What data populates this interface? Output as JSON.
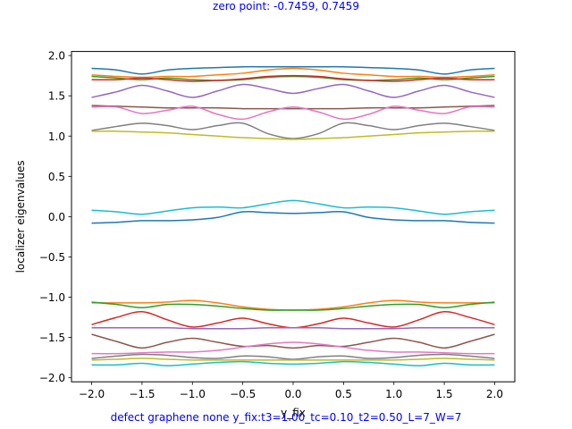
{
  "header": {
    "zero_point_text": "zero point: -0.7459, 0.7459"
  },
  "footer": {
    "caption": "defect graphene none y_fix:t3=1.00_tc=0.10_t2=0.50_L=7_W=7"
  },
  "chart_data": {
    "type": "line",
    "title": "",
    "xlabel": "y_fix",
    "ylabel": "localizer eigenvalues",
    "xlim": [
      -2.2,
      2.2
    ],
    "ylim": [
      -2.05,
      2.05
    ],
    "xticks": [
      -2.0,
      -1.5,
      -1.0,
      -0.5,
      0.0,
      0.5,
      1.0,
      1.5,
      2.0
    ],
    "xtick_labels": [
      "−2.0",
      "−1.5",
      "−1.0",
      "−0.5",
      "0.0",
      "0.5",
      "1.0",
      "1.5",
      "2.0"
    ],
    "yticks": [
      -2.0,
      -1.5,
      -1.0,
      -0.5,
      0.0,
      0.5,
      1.0,
      1.5,
      2.0
    ],
    "ytick_labels": [
      "−2.0",
      "−1.5",
      "−1.0",
      "−0.5",
      "0.0",
      "0.5",
      "1.0",
      "1.5",
      "2.0"
    ],
    "grid": false,
    "legend": "none",
    "x": [
      -2.0,
      -1.75,
      -1.5,
      -1.25,
      -1.0,
      -0.75,
      -0.5,
      -0.25,
      0.0,
      0.25,
      0.5,
      0.75,
      1.0,
      1.25,
      1.5,
      1.75,
      2.0
    ],
    "series": [
      {
        "color": "#1f77b4",
        "values": [
          1.84,
          1.82,
          1.77,
          1.82,
          1.84,
          1.85,
          1.86,
          1.86,
          1.86,
          1.86,
          1.86,
          1.85,
          1.84,
          1.82,
          1.77,
          1.82,
          1.84
        ]
      },
      {
        "color": "#ff7f0e",
        "values": [
          1.76,
          1.74,
          1.73,
          1.74,
          1.74,
          1.76,
          1.78,
          1.82,
          1.84,
          1.82,
          1.78,
          1.76,
          1.74,
          1.74,
          1.73,
          1.74,
          1.76
        ]
      },
      {
        "color": "#2ca02c",
        "values": [
          1.74,
          1.72,
          1.7,
          1.72,
          1.7,
          1.69,
          1.7,
          1.73,
          1.74,
          1.73,
          1.7,
          1.69,
          1.7,
          1.72,
          1.7,
          1.72,
          1.74
        ]
      },
      {
        "color": "#d62728",
        "values": [
          1.7,
          1.7,
          1.72,
          1.7,
          1.68,
          1.69,
          1.71,
          1.74,
          1.75,
          1.74,
          1.71,
          1.69,
          1.68,
          1.7,
          1.72,
          1.7,
          1.7
        ]
      },
      {
        "color": "#9467bd",
        "values": [
          1.48,
          1.55,
          1.63,
          1.56,
          1.48,
          1.56,
          1.64,
          1.59,
          1.53,
          1.59,
          1.64,
          1.56,
          1.48,
          1.56,
          1.63,
          1.55,
          1.48
        ]
      },
      {
        "color": "#8c564b",
        "values": [
          1.38,
          1.37,
          1.36,
          1.35,
          1.35,
          1.35,
          1.34,
          1.34,
          1.34,
          1.34,
          1.34,
          1.35,
          1.35,
          1.35,
          1.36,
          1.37,
          1.38
        ]
      },
      {
        "color": "#e377c2",
        "values": [
          1.36,
          1.36,
          1.28,
          1.32,
          1.37,
          1.27,
          1.21,
          1.3,
          1.36,
          1.3,
          1.21,
          1.27,
          1.37,
          1.32,
          1.28,
          1.36,
          1.36
        ]
      },
      {
        "color": "#7f7f7f",
        "values": [
          1.07,
          1.12,
          1.16,
          1.13,
          1.08,
          1.13,
          1.16,
          1.03,
          0.97,
          1.03,
          1.16,
          1.13,
          1.08,
          1.13,
          1.16,
          1.12,
          1.07
        ]
      },
      {
        "color": "#bcbd22",
        "values": [
          1.06,
          1.06,
          1.05,
          1.04,
          1.02,
          1.0,
          0.98,
          0.97,
          0.96,
          0.97,
          0.98,
          1.0,
          1.02,
          1.04,
          1.05,
          1.06,
          1.06
        ]
      },
      {
        "color": "#17becf",
        "values": [
          0.08,
          0.06,
          0.03,
          0.07,
          0.11,
          0.12,
          0.11,
          0.16,
          0.2,
          0.16,
          0.11,
          0.12,
          0.11,
          0.07,
          0.03,
          0.06,
          0.08
        ]
      },
      {
        "color": "#1f77b4",
        "values": [
          -0.08,
          -0.07,
          -0.05,
          -0.05,
          -0.04,
          -0.01,
          0.06,
          0.05,
          0.04,
          0.05,
          0.06,
          -0.01,
          -0.04,
          -0.05,
          -0.05,
          -0.07,
          -0.08
        ]
      },
      {
        "color": "#ff7f0e",
        "values": [
          -1.07,
          -1.07,
          -1.07,
          -1.06,
          -1.04,
          -1.07,
          -1.12,
          -1.15,
          -1.16,
          -1.15,
          -1.12,
          -1.07,
          -1.04,
          -1.06,
          -1.07,
          -1.07,
          -1.07
        ]
      },
      {
        "color": "#2ca02c",
        "values": [
          -1.06,
          -1.09,
          -1.13,
          -1.09,
          -1.09,
          -1.11,
          -1.14,
          -1.16,
          -1.16,
          -1.16,
          -1.14,
          -1.11,
          -1.09,
          -1.09,
          -1.13,
          -1.09,
          -1.06
        ]
      },
      {
        "color": "#d62728",
        "values": [
          -1.34,
          -1.25,
          -1.18,
          -1.28,
          -1.37,
          -1.32,
          -1.26,
          -1.33,
          -1.38,
          -1.33,
          -1.26,
          -1.32,
          -1.37,
          -1.28,
          -1.18,
          -1.25,
          -1.34
        ]
      },
      {
        "color": "#9467bd",
        "values": [
          -1.38,
          -1.38,
          -1.38,
          -1.38,
          -1.39,
          -1.39,
          -1.39,
          -1.38,
          -1.38,
          -1.38,
          -1.39,
          -1.39,
          -1.39,
          -1.38,
          -1.38,
          -1.38,
          -1.38
        ]
      },
      {
        "color": "#8c564b",
        "values": [
          -1.46,
          -1.55,
          -1.63,
          -1.56,
          -1.51,
          -1.56,
          -1.61,
          -1.6,
          -1.63,
          -1.6,
          -1.61,
          -1.56,
          -1.51,
          -1.56,
          -1.63,
          -1.55,
          -1.46
        ]
      },
      {
        "color": "#e377c2",
        "values": [
          -1.7,
          -1.7,
          -1.69,
          -1.68,
          -1.68,
          -1.66,
          -1.62,
          -1.58,
          -1.56,
          -1.58,
          -1.62,
          -1.66,
          -1.68,
          -1.68,
          -1.69,
          -1.7,
          -1.7
        ]
      },
      {
        "color": "#7f7f7f",
        "values": [
          -1.76,
          -1.73,
          -1.71,
          -1.72,
          -1.75,
          -1.76,
          -1.73,
          -1.74,
          -1.77,
          -1.74,
          -1.73,
          -1.76,
          -1.75,
          -1.72,
          -1.71,
          -1.73,
          -1.76
        ]
      },
      {
        "color": "#bcbd22",
        "values": [
          -1.78,
          -1.77,
          -1.76,
          -1.77,
          -1.78,
          -1.78,
          -1.78,
          -1.78,
          -1.78,
          -1.78,
          -1.78,
          -1.78,
          -1.78,
          -1.77,
          -1.76,
          -1.77,
          -1.78
        ]
      },
      {
        "color": "#17becf",
        "values": [
          -1.84,
          -1.84,
          -1.82,
          -1.85,
          -1.83,
          -1.81,
          -1.8,
          -1.82,
          -1.83,
          -1.82,
          -1.8,
          -1.81,
          -1.83,
          -1.85,
          -1.82,
          -1.84,
          -1.84
        ]
      }
    ]
  }
}
